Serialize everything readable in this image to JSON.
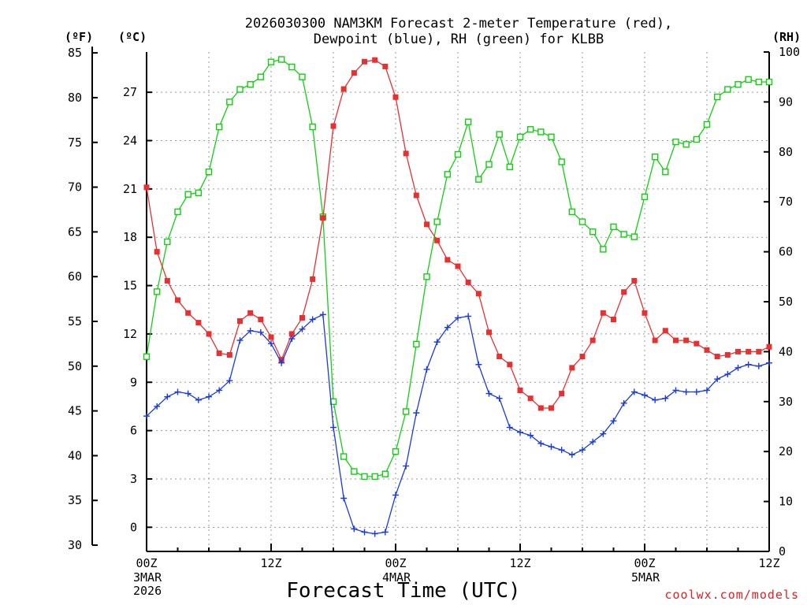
{
  "chart_data": {
    "type": "line",
    "title_line1": "2026030300 NAM3KM Forecast 2-meter Temperature (red),",
    "title_line2": "Dewpoint (blue), RH (green) for KLBB",
    "xlabel": "Forecast Time (UTC)",
    "credit": "coolwx.com/models",
    "unit_f": "(ºF)",
    "unit_c": "(ºC)",
    "unit_rh": "(RH)",
    "x_ticks": [
      {
        "hour": 0,
        "label": "00Z",
        "sub1": "3MAR",
        "sub2": "2026"
      },
      {
        "hour": 12,
        "label": "12Z",
        "sub1": "",
        "sub2": ""
      },
      {
        "hour": 24,
        "label": "00Z",
        "sub1": "4MAR",
        "sub2": ""
      },
      {
        "hour": 36,
        "label": "12Z",
        "sub1": "",
        "sub2": ""
      },
      {
        "hour": 48,
        "label": "00Z",
        "sub1": "5MAR",
        "sub2": ""
      },
      {
        "hour": 60,
        "label": "12Z",
        "sub1": "",
        "sub2": ""
      }
    ],
    "xlim_hours": [
      0,
      60
    ],
    "ylim_c": [
      -1.5,
      29.5
    ],
    "yticks_c": [
      0,
      3,
      6,
      9,
      12,
      15,
      18,
      21,
      24,
      27
    ],
    "yticks_f": [
      30,
      35,
      40,
      45,
      50,
      55,
      60,
      65,
      70,
      75,
      80,
      85
    ],
    "ylim_rh": [
      0,
      100
    ],
    "yticks_rh": [
      0,
      10,
      20,
      30,
      40,
      50,
      60,
      70,
      80,
      90,
      100
    ],
    "series": [
      {
        "name": "Temperature (°C)",
        "color": "#e83030",
        "marker": "filled-square",
        "axis": "celsius",
        "values": [
          21.1,
          17.1,
          15.3,
          14.1,
          13.3,
          12.7,
          12.0,
          10.8,
          10.7,
          12.8,
          13.3,
          12.9,
          11.8,
          10.4,
          12.0,
          13.0,
          15.4,
          19.2,
          24.9,
          27.2,
          28.2,
          28.9,
          29.0,
          28.6,
          26.7,
          23.2,
          20.6,
          18.8,
          17.8,
          16.6,
          16.2,
          15.2,
          14.5,
          12.1,
          10.6,
          10.1,
          8.5,
          8.0,
          7.4,
          7.4,
          8.3,
          9.9,
          10.6,
          11.6,
          13.3,
          12.9,
          14.6,
          15.3,
          13.3,
          11.6,
          12.2,
          11.6,
          11.6,
          11.4,
          11.0,
          10.6,
          10.7,
          10.9,
          10.9,
          10.9,
          11.2
        ]
      },
      {
        "name": "Dewpoint (°C)",
        "color": "#1a3ae0",
        "marker": "plus",
        "axis": "celsius",
        "values": [
          6.9,
          7.5,
          8.1,
          8.4,
          8.3,
          7.9,
          8.1,
          8.5,
          9.1,
          11.6,
          12.2,
          12.1,
          11.4,
          10.2,
          11.7,
          12.3,
          12.9,
          13.2,
          6.2,
          1.8,
          -0.1,
          -0.3,
          -0.4,
          -0.3,
          2.0,
          3.8,
          7.1,
          9.8,
          11.5,
          12.4,
          13.0,
          13.1,
          10.1,
          8.3,
          8.0,
          6.2,
          5.9,
          5.7,
          5.2,
          5.0,
          4.8,
          4.5,
          4.8,
          5.3,
          5.8,
          6.6,
          7.7,
          8.4,
          8.2,
          7.9,
          8.0,
          8.5,
          8.4,
          8.4,
          8.5,
          9.2,
          9.5,
          9.9,
          10.1,
          10.0,
          10.2
        ]
      },
      {
        "name": "RH (%)",
        "color": "#10d010",
        "marker": "open-square",
        "axis": "rh",
        "values": [
          39,
          52,
          62,
          68,
          71.5,
          71.8,
          76,
          85,
          90,
          92.5,
          93.5,
          95,
          98,
          98.5,
          97,
          95,
          85,
          67,
          30,
          19,
          16,
          15,
          15,
          15.5,
          20,
          28,
          41.5,
          55,
          66,
          75.5,
          79.5,
          86,
          74.5,
          77.5,
          83.5,
          77,
          83,
          84.5,
          84,
          83,
          78,
          68,
          66,
          64,
          60.5,
          65,
          63.5,
          63,
          71,
          79,
          76,
          82,
          81.5,
          82.5,
          85.5,
          91,
          92.5,
          93.5,
          94.5,
          94,
          94
        ]
      }
    ]
  }
}
